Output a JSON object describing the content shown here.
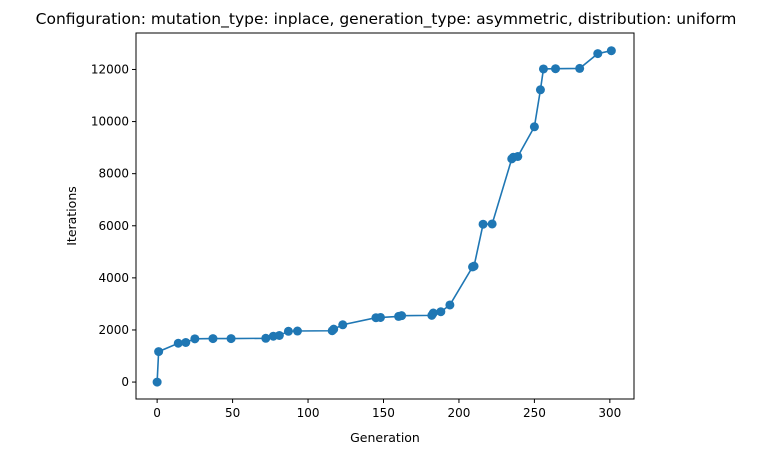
{
  "chart_data": {
    "type": "line",
    "title": "Configuration: mutation_type: inplace, generation_type: asymmetric, distribution: uniform",
    "xlabel": "Generation",
    "ylabel": "Iterations",
    "xlim": [
      -14,
      316
    ],
    "ylim": [
      -650,
      13400
    ],
    "xticks": [
      0,
      50,
      100,
      150,
      200,
      250,
      300
    ],
    "yticks": [
      0,
      2000,
      4000,
      6000,
      8000,
      10000,
      12000
    ],
    "grid": false,
    "colors": {
      "series": "#1f77b4",
      "axes": "#000000",
      "background": "#ffffff"
    },
    "markers": "circle",
    "series": [
      {
        "x": [
          0,
          1,
          14,
          19,
          25,
          37,
          49,
          72,
          77,
          81,
          87,
          93,
          116,
          117,
          123,
          145,
          148,
          160,
          162,
          182,
          183,
          188,
          194,
          209,
          210,
          216,
          222,
          235,
          236,
          239,
          250,
          254,
          256,
          264,
          280,
          292,
          301
        ],
        "y": [
          0,
          1170,
          1490,
          1520,
          1660,
          1670,
          1670,
          1680,
          1760,
          1790,
          1950,
          1960,
          1970,
          2030,
          2200,
          2470,
          2480,
          2520,
          2550,
          2560,
          2650,
          2700,
          2960,
          4420,
          4450,
          6060,
          6070,
          8570,
          8630,
          8660,
          9800,
          11220,
          12020,
          12030,
          12040,
          12610,
          12720
        ]
      }
    ]
  }
}
